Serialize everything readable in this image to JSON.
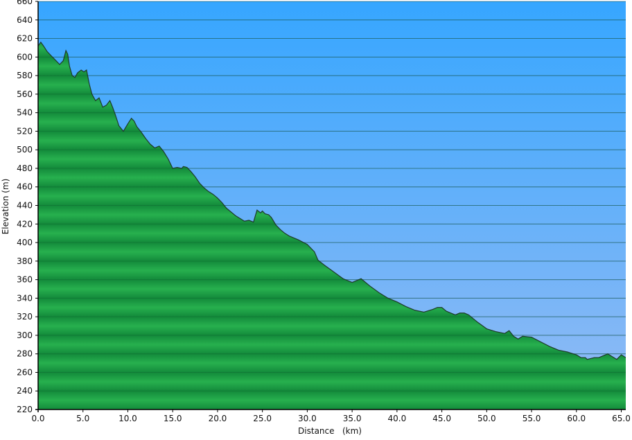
{
  "chart_data": {
    "type": "area",
    "xlabel": "Distance   (km)",
    "ylabel": "Elevation (m)",
    "xlim": [
      0,
      65.5
    ],
    "ylim": [
      220,
      660
    ],
    "x_ticks": [
      0,
      5,
      10,
      15,
      20,
      25,
      30,
      35,
      40,
      45,
      50,
      55,
      60,
      65
    ],
    "x_tick_labels": [
      "0.0",
      "5.0",
      "10.0",
      "15.0",
      "20.0",
      "25.0",
      "30.0",
      "35.0",
      "40.0",
      "45.0",
      "50.0",
      "55.0",
      "60.0",
      "65.0"
    ],
    "y_ticks": [
      220,
      240,
      260,
      280,
      300,
      320,
      340,
      360,
      380,
      400,
      420,
      440,
      460,
      480,
      500,
      520,
      540,
      560,
      580,
      600,
      620,
      640,
      660
    ],
    "y_tick_labels": [
      "220",
      "240",
      "260",
      "280",
      "300",
      "320",
      "340",
      "360",
      "380",
      "400",
      "420",
      "440",
      "460",
      "480",
      "500",
      "520",
      "540",
      "560",
      "580",
      "600",
      "620",
      "640",
      "660"
    ],
    "grid": true,
    "colors": {
      "sky_top": "#36a6ff",
      "sky_bottom": "#93bbf4",
      "fill_dark": "#138a3b",
      "fill_light": "#27b04e",
      "outline": "#1e3a2a",
      "gridline": "#2a5d86"
    },
    "series": [
      {
        "x": [
          0,
          0.3,
          0.6,
          1.0,
          1.5,
          2.0,
          2.4,
          2.8,
          3.1,
          3.3,
          3.5,
          3.8,
          4.1,
          4.4,
          4.8,
          5.1,
          5.4,
          5.7,
          6.0,
          6.4,
          6.8,
          7.2,
          7.6,
          8.0,
          8.3,
          8.6,
          9.0,
          9.5,
          10.0,
          10.4,
          10.7,
          11.0,
          11.5,
          12.0,
          12.5,
          13.0,
          13.5,
          14.0,
          14.5,
          15.0,
          15.5,
          16.0,
          16.2,
          16.6,
          17.0,
          17.5,
          18.0,
          18.5,
          19.0,
          19.5,
          20.0,
          20.5,
          21.0,
          21.5,
          22.0,
          22.5,
          23.0,
          23.5,
          24.0,
          24.4,
          24.8,
          25.0,
          25.3,
          25.7,
          26.0,
          26.5,
          27.0,
          27.5,
          28.0,
          29.0,
          30.0,
          30.8,
          31.2,
          32.0,
          33.0,
          34.0,
          35.0,
          36.0,
          36.5,
          37.0,
          38.0,
          39.0,
          40.0,
          41.0,
          42.0,
          43.0,
          44.0,
          44.5,
          45.0,
          45.5,
          46.0,
          46.5,
          47.0,
          47.5,
          48.0,
          49.0,
          50.0,
          51.0,
          52.0,
          52.5,
          53.0,
          53.5,
          54.0,
          55.0,
          56.0,
          57.0,
          58.0,
          59.0,
          60.0,
          60.5,
          61.0,
          61.2,
          62.0,
          62.5,
          63.0,
          63.5,
          64.0,
          64.5,
          65.0,
          65.5
        ],
        "values": [
          612,
          616,
          612,
          606,
          601,
          596,
          592,
          596,
          607,
          603,
          590,
          580,
          578,
          583,
          586,
          584,
          586,
          571,
          560,
          553,
          556,
          546,
          548,
          553,
          546,
          538,
          526,
          520,
          528,
          534,
          531,
          525,
          519,
          512,
          506,
          502,
          504,
          498,
          490,
          480,
          481,
          480,
          482,
          481,
          477,
          471,
          464,
          459,
          455,
          452,
          448,
          443,
          437,
          433,
          429,
          426,
          423,
          424,
          422,
          435,
          432,
          434,
          431,
          430,
          427,
          419,
          414,
          410,
          407,
          403,
          398,
          390,
          381,
          375,
          368,
          361,
          357,
          361,
          357,
          353,
          346,
          340,
          336,
          331,
          327,
          325,
          328,
          330,
          330,
          326,
          324,
          322,
          324,
          324,
          322,
          314,
          307,
          304,
          302,
          305,
          299,
          296,
          299,
          298,
          293,
          288,
          284,
          282,
          279,
          276,
          276,
          274,
          276,
          276,
          278,
          280,
          277,
          274,
          279,
          276
        ]
      }
    ]
  }
}
